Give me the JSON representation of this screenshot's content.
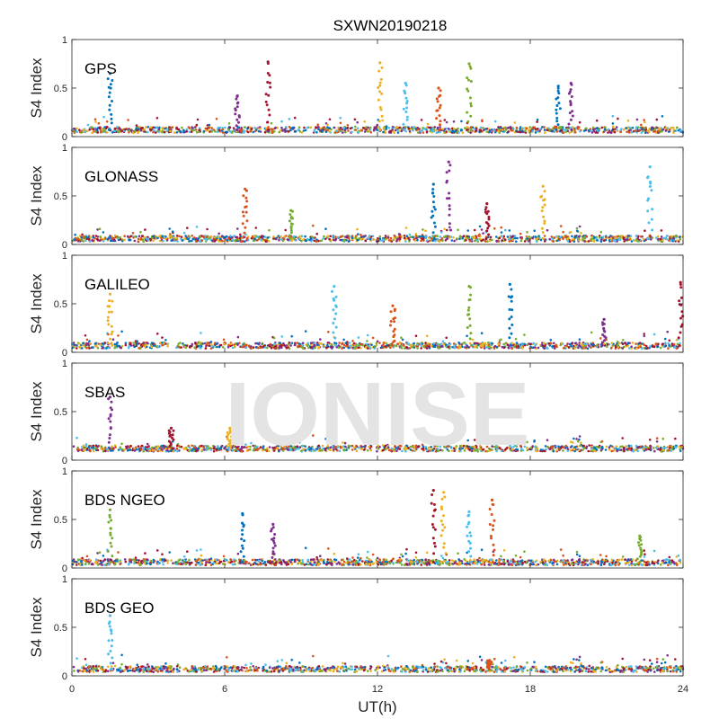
{
  "chart_data": {
    "type": "scatter",
    "title": "SXWN20190218",
    "xlabel": "UT(h)",
    "ylabel": "S4 Index",
    "xlim": [
      0,
      24
    ],
    "ylim": [
      0,
      1
    ],
    "xticks": [
      "0",
      "6",
      "12",
      "18",
      "24"
    ],
    "yticks": [
      "0",
      "0.5",
      "1"
    ],
    "watermark": "IONISE",
    "colors": [
      "#0072BD",
      "#D95319",
      "#EDB120",
      "#7E2F8E",
      "#77AC30",
      "#4DBEEE",
      "#A2142F"
    ],
    "panels": [
      {
        "label": "GPS",
        "baseline": 0.07,
        "spikes": [
          {
            "x": 1.5,
            "y": 0.65
          },
          {
            "x": 6.5,
            "y": 0.42
          },
          {
            "x": 7.7,
            "y": 0.77
          },
          {
            "x": 12.1,
            "y": 0.76
          },
          {
            "x": 13.1,
            "y": 0.55
          },
          {
            "x": 14.4,
            "y": 0.5
          },
          {
            "x": 15.6,
            "y": 0.75
          },
          {
            "x": 19.1,
            "y": 0.52
          },
          {
            "x": 19.6,
            "y": 0.55
          }
        ]
      },
      {
        "label": "GLONASS",
        "baseline": 0.06,
        "spikes": [
          {
            "x": 6.8,
            "y": 0.57
          },
          {
            "x": 8.6,
            "y": 0.35
          },
          {
            "x": 14.2,
            "y": 0.62
          },
          {
            "x": 14.8,
            "y": 0.85
          },
          {
            "x": 16.3,
            "y": 0.42
          },
          {
            "x": 18.5,
            "y": 0.6
          },
          {
            "x": 22.7,
            "y": 0.8
          }
        ]
      },
      {
        "label": "GALILEO",
        "baseline": 0.07,
        "spikes": [
          {
            "x": 1.5,
            "y": 0.6
          },
          {
            "x": 10.3,
            "y": 0.68
          },
          {
            "x": 12.6,
            "y": 0.48
          },
          {
            "x": 15.6,
            "y": 0.68
          },
          {
            "x": 17.2,
            "y": 0.7
          },
          {
            "x": 20.9,
            "y": 0.34
          },
          {
            "x": 23.9,
            "y": 0.72
          }
        ]
      },
      {
        "label": "SBAS",
        "baseline": 0.12,
        "spikes": [
          {
            "x": 1.5,
            "y": 0.65
          },
          {
            "x": 3.9,
            "y": 0.33
          },
          {
            "x": 6.2,
            "y": 0.33
          }
        ]
      },
      {
        "label": "BDS NGEO",
        "baseline": 0.06,
        "spikes": [
          {
            "x": 1.5,
            "y": 0.6
          },
          {
            "x": 6.7,
            "y": 0.56
          },
          {
            "x": 7.9,
            "y": 0.45
          },
          {
            "x": 14.2,
            "y": 0.8
          },
          {
            "x": 14.6,
            "y": 0.78
          },
          {
            "x": 15.6,
            "y": 0.58
          },
          {
            "x": 16.5,
            "y": 0.7
          },
          {
            "x": 22.3,
            "y": 0.33
          }
        ]
      },
      {
        "label": "BDS GEO",
        "baseline": 0.07,
        "spikes": [
          {
            "x": 1.5,
            "y": 0.62
          },
          {
            "x": 16.4,
            "y": 0.16
          }
        ]
      }
    ]
  }
}
